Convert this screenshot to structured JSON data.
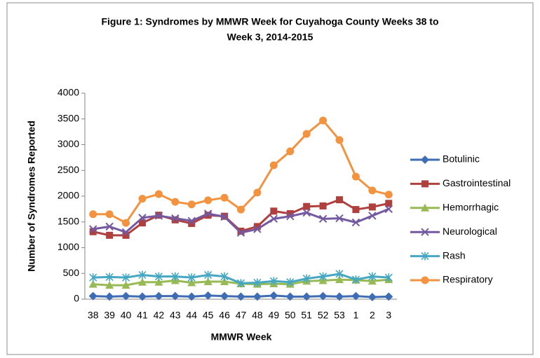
{
  "chart_data": {
    "type": "line",
    "title": "Figure 1: Syndromes by MMWR Week for Cuyahoga County Weeks 38 to",
    "subtitle": "Week 3, 2014-2015",
    "x_label": "MMWR Week",
    "y_label": "Number of Syndromes Reported",
    "categories": [
      "38",
      "39",
      "40",
      "41",
      "42",
      "43",
      "44",
      "45",
      "46",
      "47",
      "48",
      "49",
      "50",
      "51",
      "52",
      "53",
      "1",
      "2",
      "3"
    ],
    "ylim": [
      0,
      4000
    ],
    "yticks": [
      0,
      500,
      1000,
      1500,
      2000,
      2500,
      3000,
      3500,
      4000
    ],
    "grid": false,
    "legend": "right",
    "series": [
      {
        "name": "Botulinic",
        "color": "#3e6db5",
        "marker": "diamond",
        "values": [
          60,
          50,
          60,
          50,
          60,
          60,
          50,
          70,
          60,
          50,
          50,
          70,
          50,
          50,
          60,
          50,
          60,
          40,
          50
        ]
      },
      {
        "name": "Gastrointestinal",
        "color": "#b0403d",
        "marker": "square",
        "values": [
          1310,
          1240,
          1240,
          1480,
          1630,
          1540,
          1470,
          1630,
          1610,
          1320,
          1410,
          1710,
          1660,
          1800,
          1810,
          1930,
          1740,
          1790,
          1860
        ]
      },
      {
        "name": "Hemorrhagic",
        "color": "#98ba54",
        "marker": "triangle",
        "values": [
          290,
          270,
          270,
          330,
          330,
          360,
          320,
          340,
          340,
          300,
          290,
          300,
          290,
          350,
          360,
          380,
          370,
          350,
          380
        ]
      },
      {
        "name": "Neurological",
        "color": "#7459a0",
        "marker": "x",
        "values": [
          1360,
          1410,
          1300,
          1580,
          1620,
          1570,
          1520,
          1660,
          1600,
          1290,
          1360,
          1560,
          1610,
          1680,
          1560,
          1570,
          1490,
          1620,
          1750
        ]
      },
      {
        "name": "Rash",
        "color": "#45a7c2",
        "marker": "star",
        "values": [
          420,
          430,
          420,
          470,
          440,
          440,
          420,
          470,
          440,
          310,
          320,
          350,
          330,
          400,
          440,
          490,
          380,
          440,
          420
        ]
      },
      {
        "name": "Respiratory",
        "color": "#f3923f",
        "marker": "circle",
        "values": [
          1650,
          1650,
          1480,
          1950,
          2040,
          1890,
          1840,
          1920,
          1970,
          1740,
          2070,
          2600,
          2870,
          3210,
          3470,
          3090,
          2380,
          2110,
          2030
        ]
      }
    ]
  }
}
